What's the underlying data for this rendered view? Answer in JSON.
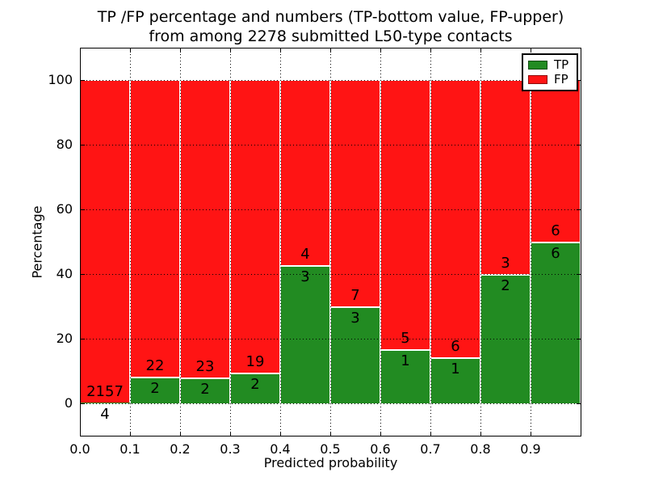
{
  "figure": {
    "background": "#ffffff"
  },
  "chart_data": {
    "type": "bar",
    "mode": "stacked-percentage",
    "title_line1": "TP /FP percentage and numbers (TP-bottom value, FP-upper)",
    "title_line2": "from among 2278 submitted L50-type contacts",
    "xlabel": "Predicted probability",
    "ylabel": "Percentage",
    "xlim": [
      0.0,
      1.0
    ],
    "ylim": [
      -10,
      110
    ],
    "xticks": [
      "0.0",
      "0.1",
      "0.2",
      "0.3",
      "0.4",
      "0.5",
      "0.6",
      "0.7",
      "0.8",
      "0.9"
    ],
    "yticks": [
      0,
      20,
      40,
      60,
      80,
      100
    ],
    "grid_style": "dotted",
    "grid_color": "#000000",
    "bar_edge_color": "#ffffff",
    "bin_edges": [
      0.0,
      0.1,
      0.2,
      0.3,
      0.4,
      0.5,
      0.6,
      0.7,
      0.8,
      0.9,
      1.0
    ],
    "series": [
      {
        "name": "TP",
        "color": "#228b22",
        "counts": [
          4,
          2,
          2,
          2,
          3,
          3,
          1,
          1,
          2,
          6
        ]
      },
      {
        "name": "FP",
        "color": "#ff1414",
        "counts": [
          2157,
          22,
          23,
          19,
          4,
          7,
          5,
          6,
          3,
          6
        ]
      }
    ],
    "tp_percent": [
      0.19,
      8.33,
      8.0,
      9.52,
      42.86,
      30.0,
      16.67,
      14.29,
      40.0,
      50.0
    ],
    "total_submitted": 2278,
    "legend": {
      "position": "upper right",
      "entries": [
        {
          "label": "TP",
          "color": "#228b22"
        },
        {
          "label": "FP",
          "color": "#ff1414"
        }
      ]
    }
  }
}
